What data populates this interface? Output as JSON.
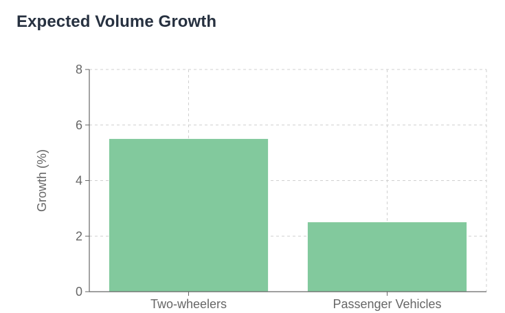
{
  "card": {
    "title": "Expected Volume Growth"
  },
  "chart_data": {
    "type": "bar",
    "title": "Expected Volume Growth",
    "categories": [
      "Two-wheelers",
      "Passenger Vehicles"
    ],
    "values": [
      5.5,
      2.5
    ],
    "xlabel": "",
    "ylabel": "Growth (%)",
    "ylim": [
      0,
      8
    ],
    "yticks": [
      0,
      2,
      4,
      6,
      8
    ],
    "grid": true,
    "bar_color": "#82c99d",
    "axis_color": "#666666",
    "grid_color": "#cfcfcf"
  }
}
